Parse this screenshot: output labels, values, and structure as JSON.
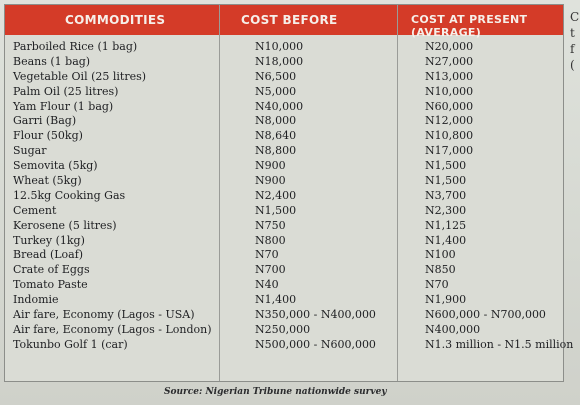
{
  "header": {
    "col1": "COMMODITIES",
    "col2": "COST BEFORE",
    "col3": "COST AT PRESENT (AVERAGE)"
  },
  "rows": [
    {
      "item": "Parboiled Rice (1 bag)",
      "before": "N10,000",
      "present": "N20,000"
    },
    {
      "item": "Beans (1 bag)",
      "before": "N18,000",
      "present": "N27,000"
    },
    {
      "item": "Vegetable Oil (25 litres)",
      "before": "N6,500",
      "present": "N13,000"
    },
    {
      "item": "Palm Oil (25 litres)",
      "before": "N5,000",
      "present": "N10,000"
    },
    {
      "item": "Yam Flour (1 bag)",
      "before": "N40,000",
      "present": "N60,000"
    },
    {
      "item": "Garri (Bag)",
      "before": "N8,000",
      "present": "N12,000"
    },
    {
      "item": "Flour (50kg)",
      "before": "N8,640",
      "present": "N10,800"
    },
    {
      "item": "Sugar",
      "before": "N8,800",
      "present": "N17,000"
    },
    {
      "item": "Semovita (5kg)",
      "before": "N900",
      "present": "N1,500"
    },
    {
      "item": "Wheat (5kg)",
      "before": "N900",
      "present": "N1,500"
    },
    {
      "item": "12.5kg Cooking Gas",
      "before": "N2,400",
      "present": "N3,700"
    },
    {
      "item": "Cement",
      "before": "N1,500",
      "present": "N2,300"
    },
    {
      "item": "Kerosene (5 litres)",
      "before": "N750",
      "present": "N1,125"
    },
    {
      "item": "Turkey (1kg)",
      "before": "N800",
      "present": "N1,400"
    },
    {
      "item": "Bread (Loaf)",
      "before": "N70",
      "present": "N100"
    },
    {
      "item": "Crate of Eggs",
      "before": "N700",
      "present": "N850"
    },
    {
      "item": "Tomato Paste",
      "before": "N40",
      "present": "N70"
    },
    {
      "item": "Indomie",
      "before": "N1,400",
      "present": "N1,900"
    },
    {
      "item": "Air fare, Economy (Lagos - USA)",
      "before": "N350,000 - N400,000",
      "present": "N600,000 - N700,000"
    },
    {
      "item": "Air fare, Economy (Lagos - London)",
      "before": "N250,000",
      "present": "N400,000"
    },
    {
      "item": "Tokunbo Golf 1 (car)",
      "before": "N500,000 - N600,000",
      "present": "N1.3 million - N1.5 million"
    }
  ],
  "source": "Source: Nigerian Tribune nationwide survey",
  "edge_letters": [
    "C",
    "t",
    "f",
    "("
  ]
}
